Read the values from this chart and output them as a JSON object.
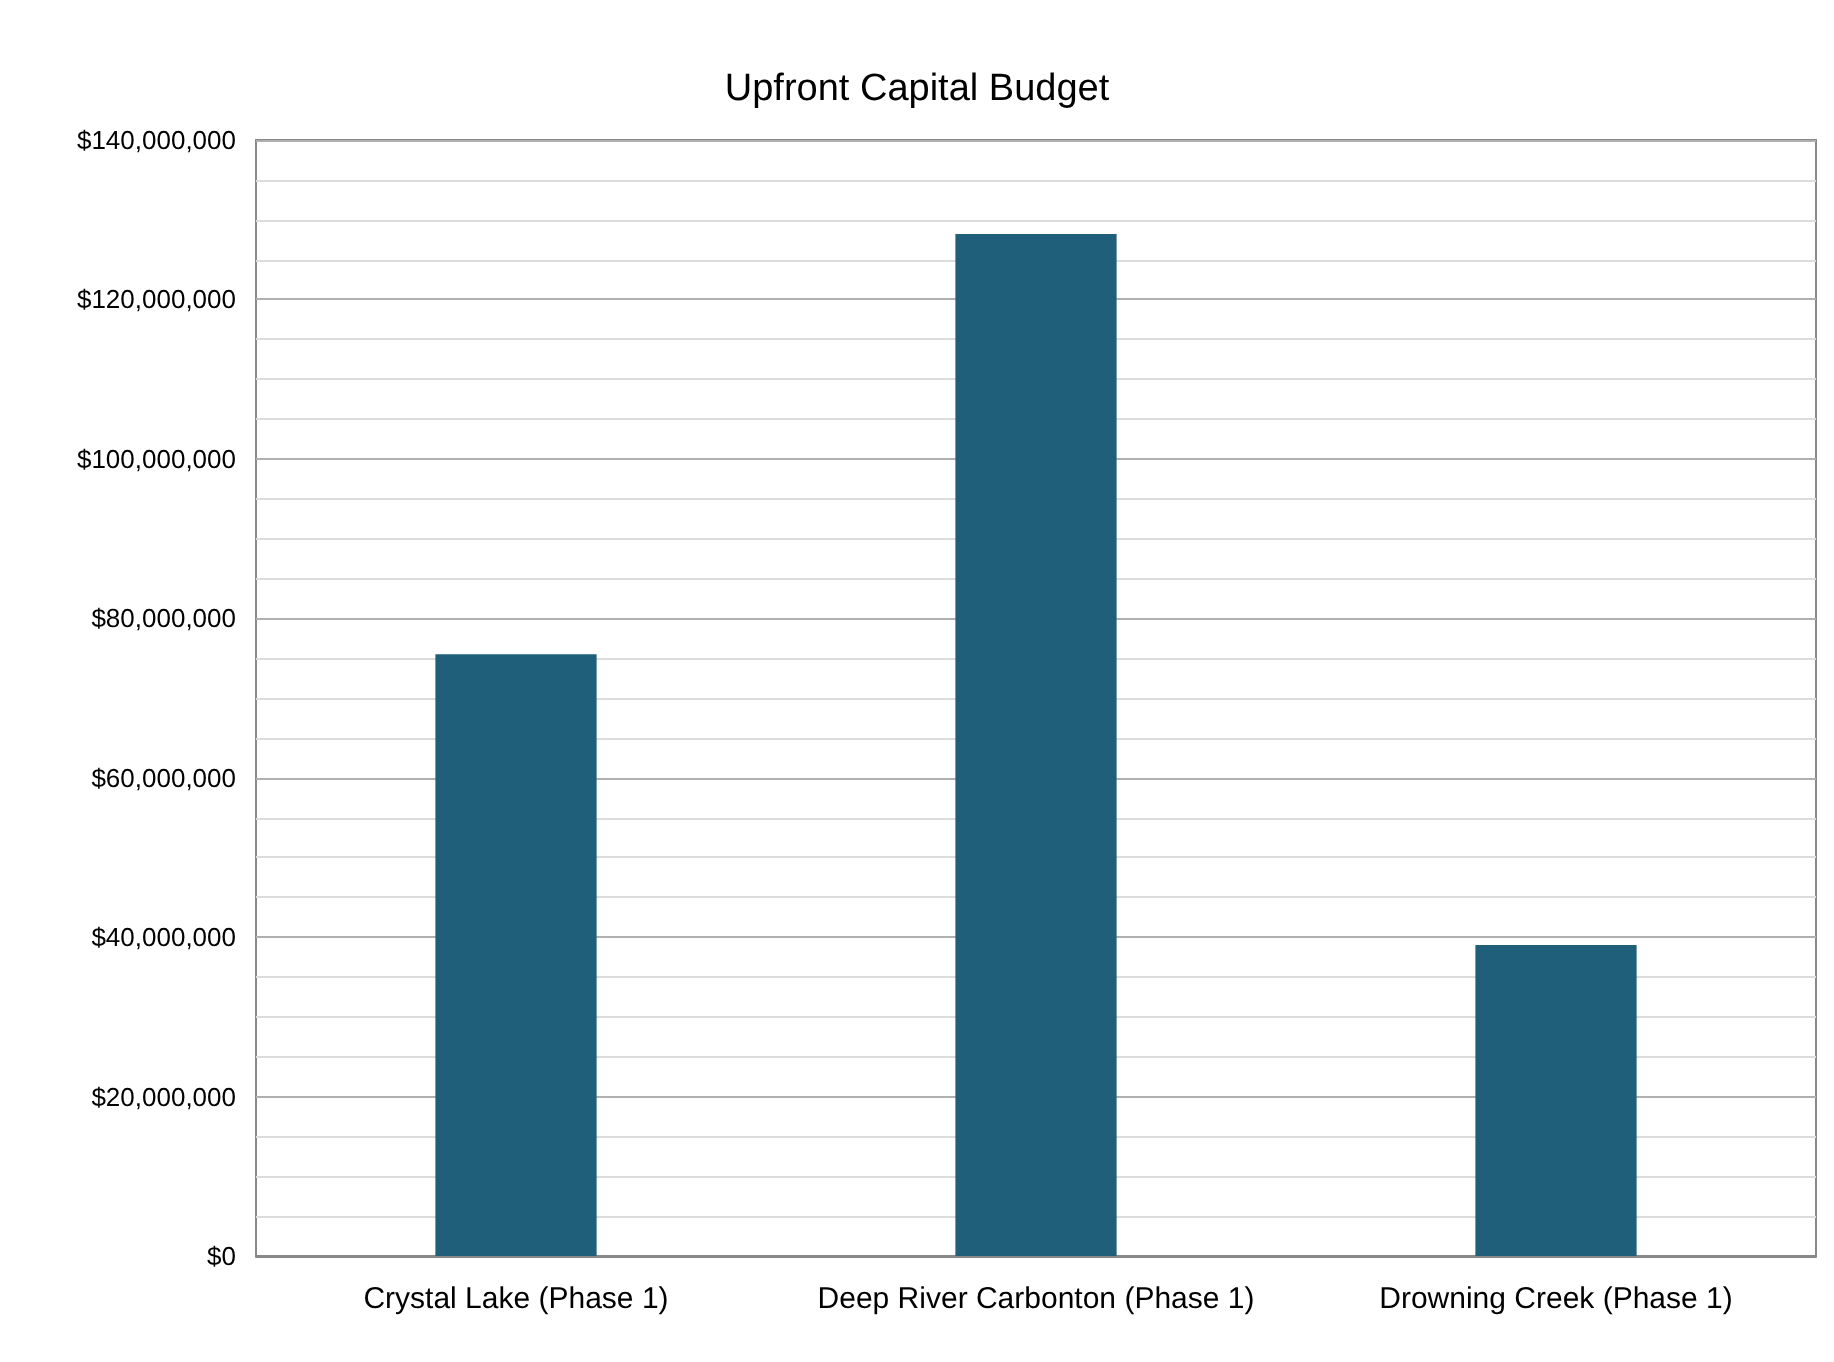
{
  "chart_data": {
    "type": "bar",
    "title": "Upfront Capital Budget",
    "categories": [
      "Crystal Lake (Phase 1)",
      "Deep River Carbonton (Phase 1)",
      "Drowning Creek (Phase 1)"
    ],
    "values": [
      75500000,
      128200000,
      39000000
    ],
    "color": "#1f5f7a",
    "ylim": [
      0,
      140000000
    ],
    "yticks": [
      {
        "value": 0,
        "label": "$0"
      },
      {
        "value": 20000000,
        "label": "$20,000,000"
      },
      {
        "value": 40000000,
        "label": "$40,000,000"
      },
      {
        "value": 60000000,
        "label": "$60,000,000"
      },
      {
        "value": 80000000,
        "label": "$80,000,000"
      },
      {
        "value": 100000000,
        "label": "$100,000,000"
      },
      {
        "value": 120000000,
        "label": "$120,000,000"
      },
      {
        "value": 140000000,
        "label": "$140,000,000"
      }
    ],
    "grid": "y"
  }
}
